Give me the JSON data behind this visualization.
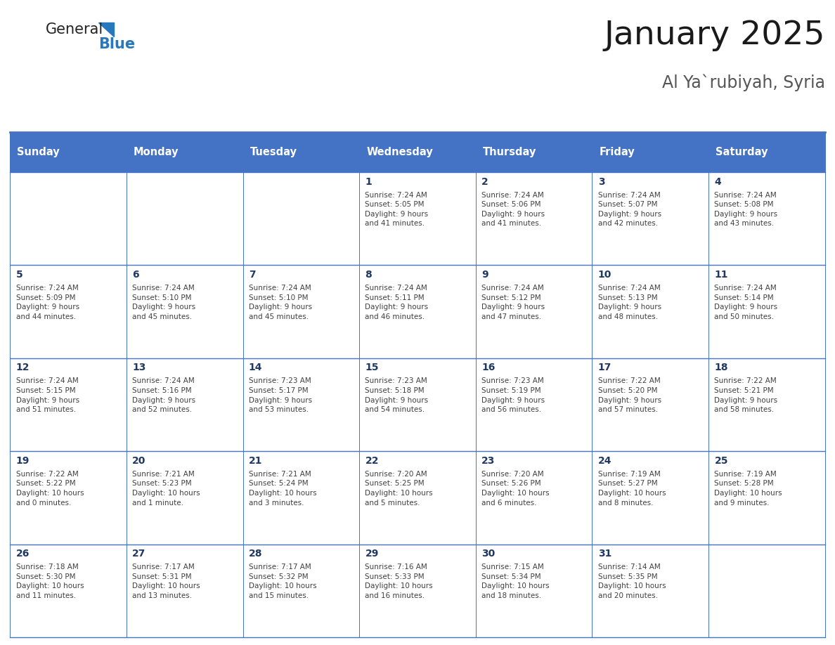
{
  "title": "January 2025",
  "subtitle": "Al Ya`rubiyah, Syria",
  "days_of_week": [
    "Sunday",
    "Monday",
    "Tuesday",
    "Wednesday",
    "Thursday",
    "Friday",
    "Saturday"
  ],
  "header_bg": "#4472C4",
  "header_text_color": "#FFFFFF",
  "border_color": "#4472C4",
  "day_num_color": "#1F3864",
  "cell_text_color": "#404040",
  "title_color": "#1a1a1a",
  "subtitle_color": "#555555",
  "weeks": [
    {
      "days": [
        {
          "date": "",
          "info": ""
        },
        {
          "date": "",
          "info": ""
        },
        {
          "date": "",
          "info": ""
        },
        {
          "date": "1",
          "info": "Sunrise: 7:24 AM\nSunset: 5:05 PM\nDaylight: 9 hours\nand 41 minutes."
        },
        {
          "date": "2",
          "info": "Sunrise: 7:24 AM\nSunset: 5:06 PM\nDaylight: 9 hours\nand 41 minutes."
        },
        {
          "date": "3",
          "info": "Sunrise: 7:24 AM\nSunset: 5:07 PM\nDaylight: 9 hours\nand 42 minutes."
        },
        {
          "date": "4",
          "info": "Sunrise: 7:24 AM\nSunset: 5:08 PM\nDaylight: 9 hours\nand 43 minutes."
        }
      ]
    },
    {
      "days": [
        {
          "date": "5",
          "info": "Sunrise: 7:24 AM\nSunset: 5:09 PM\nDaylight: 9 hours\nand 44 minutes."
        },
        {
          "date": "6",
          "info": "Sunrise: 7:24 AM\nSunset: 5:10 PM\nDaylight: 9 hours\nand 45 minutes."
        },
        {
          "date": "7",
          "info": "Sunrise: 7:24 AM\nSunset: 5:10 PM\nDaylight: 9 hours\nand 45 minutes."
        },
        {
          "date": "8",
          "info": "Sunrise: 7:24 AM\nSunset: 5:11 PM\nDaylight: 9 hours\nand 46 minutes."
        },
        {
          "date": "9",
          "info": "Sunrise: 7:24 AM\nSunset: 5:12 PM\nDaylight: 9 hours\nand 47 minutes."
        },
        {
          "date": "10",
          "info": "Sunrise: 7:24 AM\nSunset: 5:13 PM\nDaylight: 9 hours\nand 48 minutes."
        },
        {
          "date": "11",
          "info": "Sunrise: 7:24 AM\nSunset: 5:14 PM\nDaylight: 9 hours\nand 50 minutes."
        }
      ]
    },
    {
      "days": [
        {
          "date": "12",
          "info": "Sunrise: 7:24 AM\nSunset: 5:15 PM\nDaylight: 9 hours\nand 51 minutes."
        },
        {
          "date": "13",
          "info": "Sunrise: 7:24 AM\nSunset: 5:16 PM\nDaylight: 9 hours\nand 52 minutes."
        },
        {
          "date": "14",
          "info": "Sunrise: 7:23 AM\nSunset: 5:17 PM\nDaylight: 9 hours\nand 53 minutes."
        },
        {
          "date": "15",
          "info": "Sunrise: 7:23 AM\nSunset: 5:18 PM\nDaylight: 9 hours\nand 54 minutes."
        },
        {
          "date": "16",
          "info": "Sunrise: 7:23 AM\nSunset: 5:19 PM\nDaylight: 9 hours\nand 56 minutes."
        },
        {
          "date": "17",
          "info": "Sunrise: 7:22 AM\nSunset: 5:20 PM\nDaylight: 9 hours\nand 57 minutes."
        },
        {
          "date": "18",
          "info": "Sunrise: 7:22 AM\nSunset: 5:21 PM\nDaylight: 9 hours\nand 58 minutes."
        }
      ]
    },
    {
      "days": [
        {
          "date": "19",
          "info": "Sunrise: 7:22 AM\nSunset: 5:22 PM\nDaylight: 10 hours\nand 0 minutes."
        },
        {
          "date": "20",
          "info": "Sunrise: 7:21 AM\nSunset: 5:23 PM\nDaylight: 10 hours\nand 1 minute."
        },
        {
          "date": "21",
          "info": "Sunrise: 7:21 AM\nSunset: 5:24 PM\nDaylight: 10 hours\nand 3 minutes."
        },
        {
          "date": "22",
          "info": "Sunrise: 7:20 AM\nSunset: 5:25 PM\nDaylight: 10 hours\nand 5 minutes."
        },
        {
          "date": "23",
          "info": "Sunrise: 7:20 AM\nSunset: 5:26 PM\nDaylight: 10 hours\nand 6 minutes."
        },
        {
          "date": "24",
          "info": "Sunrise: 7:19 AM\nSunset: 5:27 PM\nDaylight: 10 hours\nand 8 minutes."
        },
        {
          "date": "25",
          "info": "Sunrise: 7:19 AM\nSunset: 5:28 PM\nDaylight: 10 hours\nand 9 minutes."
        }
      ]
    },
    {
      "days": [
        {
          "date": "26",
          "info": "Sunrise: 7:18 AM\nSunset: 5:30 PM\nDaylight: 10 hours\nand 11 minutes."
        },
        {
          "date": "27",
          "info": "Sunrise: 7:17 AM\nSunset: 5:31 PM\nDaylight: 10 hours\nand 13 minutes."
        },
        {
          "date": "28",
          "info": "Sunrise: 7:17 AM\nSunset: 5:32 PM\nDaylight: 10 hours\nand 15 minutes."
        },
        {
          "date": "29",
          "info": "Sunrise: 7:16 AM\nSunset: 5:33 PM\nDaylight: 10 hours\nand 16 minutes."
        },
        {
          "date": "30",
          "info": "Sunrise: 7:15 AM\nSunset: 5:34 PM\nDaylight: 10 hours\nand 18 minutes."
        },
        {
          "date": "31",
          "info": "Sunrise: 7:14 AM\nSunset: 5:35 PM\nDaylight: 10 hours\nand 20 minutes."
        },
        {
          "date": "",
          "info": ""
        }
      ]
    }
  ]
}
